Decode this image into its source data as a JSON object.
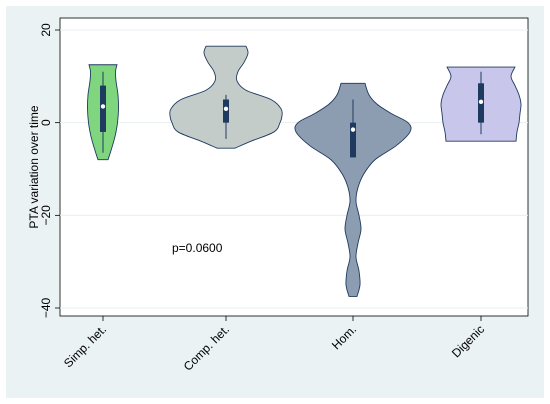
{
  "chart_data": {
    "type": "violin",
    "title": "",
    "xlabel": "",
    "ylabel": "PTA variation over time",
    "ylim": [
      -40,
      20
    ],
    "yticks": [
      -40,
      -20,
      0,
      20
    ],
    "ytick_labels": [
      "−40",
      "−20",
      "0",
      "20"
    ],
    "grid": true,
    "annotation": "p=0.0600",
    "categories": [
      "Simp. het.",
      "Comp. het.",
      "Hom.",
      "Digenic"
    ],
    "groups": [
      {
        "category": "Simp. het.",
        "color": "#7fd67f",
        "min": -8,
        "max": 12.5,
        "q1": -2,
        "median": 3.5,
        "q3": 8,
        "whisker_low": -6.5,
        "whisker_high": 11,
        "density": [
          [
            -8,
            5
          ],
          [
            -6,
            8
          ],
          [
            -3,
            12
          ],
          [
            0,
            14.5
          ],
          [
            3,
            15.5
          ],
          [
            6,
            15
          ],
          [
            9,
            13
          ],
          [
            11,
            12.5
          ],
          [
            12.5,
            14
          ]
        ]
      },
      {
        "category": "Comp. het.",
        "color": "#c3ccc8",
        "min": -5.5,
        "max": 16.5,
        "q1": 0,
        "median": 3,
        "q3": 5,
        "whisker_low": -3.5,
        "whisker_high": 6,
        "density": [
          [
            -5.5,
            9
          ],
          [
            -4,
            25
          ],
          [
            -2,
            48
          ],
          [
            0,
            54
          ],
          [
            1.5,
            56
          ],
          [
            3,
            55
          ],
          [
            5,
            45
          ],
          [
            7,
            20
          ],
          [
            9,
            11
          ],
          [
            11,
            12
          ],
          [
            13,
            18
          ],
          [
            15,
            22
          ],
          [
            16.5,
            20
          ]
        ]
      },
      {
        "category": "Hom.",
        "color": "#8d9db1",
        "min": -37.5,
        "max": 8.5,
        "q1": -7.5,
        "median": -1.5,
        "q3": 0,
        "whisker_low": -7.5,
        "whisker_high": 5,
        "density": [
          [
            -37.5,
            4
          ],
          [
            -35,
            7
          ],
          [
            -32,
            6
          ],
          [
            -29,
            3
          ],
          [
            -26,
            5
          ],
          [
            -23,
            8
          ],
          [
            -20,
            6
          ],
          [
            -17,
            3
          ],
          [
            -14,
            5
          ],
          [
            -11,
            11
          ],
          [
            -8,
            22
          ],
          [
            -5,
            43
          ],
          [
            -2,
            57
          ],
          [
            0,
            55
          ],
          [
            2,
            38
          ],
          [
            4,
            24
          ],
          [
            6,
            16
          ],
          [
            8.5,
            12
          ]
        ]
      },
      {
        "category": "Digenic",
        "color": "#c8c6ea",
        "min": -4,
        "max": 12,
        "q1": 0,
        "median": 4.5,
        "q3": 8.5,
        "whisker_low": -2.5,
        "whisker_high": 11,
        "density": [
          [
            -4,
            35
          ],
          [
            -2,
            36
          ],
          [
            0,
            38
          ],
          [
            2,
            39
          ],
          [
            4,
            40
          ],
          [
            6,
            38
          ],
          [
            8,
            34
          ],
          [
            10,
            30
          ],
          [
            12,
            34
          ]
        ]
      }
    ]
  }
}
